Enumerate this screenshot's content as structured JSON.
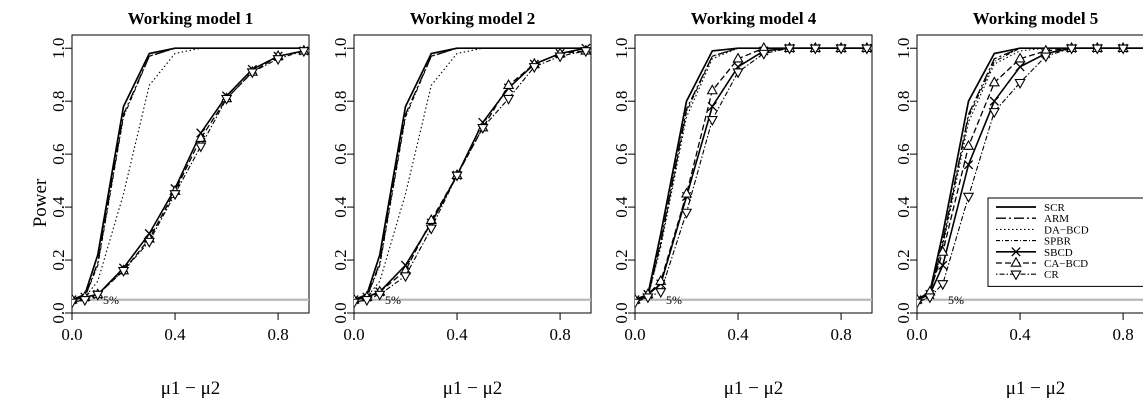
{
  "figure": {
    "ylabel": "Power",
    "xlabel": "μ1 − μ2",
    "reference_line_label": "5%"
  },
  "chart_data": [
    {
      "type": "line",
      "title": "Working model 1",
      "xlabel": "μ1 − μ2",
      "ylabel": "Power",
      "xlim": [
        0,
        0.92
      ],
      "ylim": [
        0,
        1.05
      ],
      "xticks": [
        "0.0",
        "0.4",
        "0.8"
      ],
      "yticks": [
        "0.0",
        "0.2",
        "0.4",
        "0.6",
        "0.8",
        "1.0"
      ],
      "reference_line": 0.05,
      "x": [
        0,
        0.05,
        0.1,
        0.2,
        0.3,
        0.4,
        0.5,
        0.6,
        0.7,
        0.8,
        0.9
      ],
      "series": [
        {
          "name": "SCR",
          "values": [
            0.05,
            0.07,
            0.22,
            0.78,
            0.98,
            1.0,
            1.0,
            1.0,
            1.0,
            1.0,
            1.0
          ]
        },
        {
          "name": "ARM",
          "values": [
            0.05,
            0.06,
            0.19,
            0.75,
            0.97,
            1.0,
            1.0,
            1.0,
            1.0,
            1.0,
            1.0
          ]
        },
        {
          "name": "DA−BCD",
          "values": [
            0.05,
            0.06,
            0.12,
            0.45,
            0.86,
            0.98,
            1.0,
            1.0,
            1.0,
            1.0,
            1.0
          ]
        },
        {
          "name": "SPBR",
          "values": [
            0.05,
            0.06,
            0.18,
            0.74,
            0.97,
            1.0,
            1.0,
            1.0,
            1.0,
            1.0,
            1.0
          ]
        },
        {
          "name": "SBCD",
          "values": [
            0.05,
            0.06,
            0.07,
            0.17,
            0.3,
            0.47,
            0.68,
            0.82,
            0.92,
            0.97,
            0.99
          ]
        },
        {
          "name": "CA−BCD",
          "values": [
            0.05,
            0.06,
            0.07,
            0.16,
            0.28,
            0.46,
            0.66,
            0.81,
            0.91,
            0.97,
            0.99
          ]
        },
        {
          "name": "CR",
          "values": [
            0.04,
            0.05,
            0.07,
            0.16,
            0.27,
            0.45,
            0.63,
            0.81,
            0.91,
            0.96,
            0.99
          ]
        }
      ]
    },
    {
      "type": "line",
      "title": "Working model 2",
      "xlabel": "μ1 − μ2",
      "ylabel": "Power",
      "xlim": [
        0,
        0.92
      ],
      "ylim": [
        0,
        1.05
      ],
      "xticks": [
        "0.0",
        "0.4",
        "0.8"
      ],
      "yticks": [
        "0.0",
        "0.2",
        "0.4",
        "0.6",
        "0.8",
        "1.0"
      ],
      "reference_line": 0.05,
      "x": [
        0,
        0.05,
        0.1,
        0.2,
        0.3,
        0.4,
        0.5,
        0.6,
        0.7,
        0.8,
        0.9
      ],
      "series": [
        {
          "name": "SCR",
          "values": [
            0.05,
            0.07,
            0.22,
            0.78,
            0.98,
            1.0,
            1.0,
            1.0,
            1.0,
            1.0,
            1.0
          ]
        },
        {
          "name": "ARM",
          "values": [
            0.05,
            0.06,
            0.19,
            0.75,
            0.97,
            1.0,
            1.0,
            1.0,
            1.0,
            1.0,
            1.0
          ]
        },
        {
          "name": "DA−BCD",
          "values": [
            0.05,
            0.06,
            0.12,
            0.45,
            0.86,
            0.98,
            1.0,
            1.0,
            1.0,
            1.0,
            1.0
          ]
        },
        {
          "name": "SPBR",
          "values": [
            0.05,
            0.06,
            0.18,
            0.74,
            0.97,
            1.0,
            1.0,
            1.0,
            1.0,
            1.0,
            1.0
          ]
        },
        {
          "name": "SBCD",
          "values": [
            0.05,
            0.06,
            0.08,
            0.18,
            0.34,
            0.52,
            0.72,
            0.85,
            0.94,
            0.98,
            1.0
          ]
        },
        {
          "name": "CA−BCD",
          "values": [
            0.05,
            0.06,
            0.08,
            0.16,
            0.35,
            0.52,
            0.7,
            0.86,
            0.94,
            0.98,
            0.99
          ]
        },
        {
          "name": "CR",
          "values": [
            0.04,
            0.05,
            0.07,
            0.14,
            0.32,
            0.52,
            0.7,
            0.81,
            0.93,
            0.97,
            0.99
          ]
        }
      ]
    },
    {
      "type": "line",
      "title": "Working model 4",
      "xlabel": "μ1 − μ2",
      "ylabel": "Power",
      "xlim": [
        0,
        0.92
      ],
      "ylim": [
        0,
        1.05
      ],
      "xticks": [
        "0.0",
        "0.4",
        "0.8"
      ],
      "yticks": [
        "0.0",
        "0.2",
        "0.4",
        "0.6",
        "0.8",
        "1.0"
      ],
      "reference_line": 0.05,
      "x": [
        0,
        0.05,
        0.1,
        0.2,
        0.3,
        0.4,
        0.5,
        0.6,
        0.7,
        0.8,
        0.9
      ],
      "series": [
        {
          "name": "SCR",
          "values": [
            0.05,
            0.07,
            0.3,
            0.8,
            0.99,
            1.0,
            1.0,
            1.0,
            1.0,
            1.0,
            1.0
          ]
        },
        {
          "name": "ARM",
          "values": [
            0.05,
            0.06,
            0.27,
            0.77,
            0.97,
            1.0,
            1.0,
            1.0,
            1.0,
            1.0,
            1.0
          ]
        },
        {
          "name": "DA−BCD",
          "values": [
            0.05,
            0.06,
            0.25,
            0.74,
            0.96,
            1.0,
            1.0,
            1.0,
            1.0,
            1.0,
            1.0
          ]
        },
        {
          "name": "SPBR",
          "values": [
            0.05,
            0.06,
            0.26,
            0.76,
            0.97,
            1.0,
            1.0,
            1.0,
            1.0,
            1.0,
            1.0
          ]
        },
        {
          "name": "SBCD",
          "values": [
            0.05,
            0.07,
            0.11,
            0.44,
            0.78,
            0.93,
            0.99,
            1.0,
            1.0,
            1.0,
            1.0
          ]
        },
        {
          "name": "CA−BCD",
          "values": [
            0.05,
            0.07,
            0.12,
            0.45,
            0.84,
            0.96,
            1.0,
            1.0,
            1.0,
            1.0,
            1.0
          ]
        },
        {
          "name": "CR",
          "values": [
            0.04,
            0.06,
            0.08,
            0.38,
            0.73,
            0.91,
            0.98,
            1.0,
            1.0,
            1.0,
            1.0
          ]
        }
      ]
    },
    {
      "type": "line",
      "title": "Working model 5",
      "xlabel": "μ1 − μ2",
      "ylabel": "Power",
      "xlim": [
        0,
        0.92
      ],
      "ylim": [
        0,
        1.05
      ],
      "xticks": [
        "0.0",
        "0.4",
        "0.8"
      ],
      "yticks": [
        "0.0",
        "0.2",
        "0.4",
        "0.6",
        "0.8",
        "1.0"
      ],
      "reference_line": 0.05,
      "legend": "inside right",
      "x": [
        0,
        0.05,
        0.1,
        0.2,
        0.3,
        0.4,
        0.5,
        0.6,
        0.7,
        0.8,
        0.9
      ],
      "series": [
        {
          "name": "SCR",
          "values": [
            0.05,
            0.08,
            0.3,
            0.8,
            0.98,
            1.0,
            1.0,
            1.0,
            1.0,
            1.0,
            1.0
          ]
        },
        {
          "name": "ARM",
          "values": [
            0.05,
            0.07,
            0.27,
            0.75,
            0.96,
            1.0,
            1.0,
            1.0,
            1.0,
            1.0,
            1.0
          ]
        },
        {
          "name": "DA−BCD",
          "values": [
            0.05,
            0.07,
            0.25,
            0.72,
            0.94,
            0.99,
            1.0,
            1.0,
            1.0,
            1.0,
            1.0
          ]
        },
        {
          "name": "SPBR",
          "values": [
            0.05,
            0.07,
            0.26,
            0.74,
            0.95,
            1.0,
            1.0,
            1.0,
            1.0,
            1.0,
            1.0
          ]
        },
        {
          "name": "SBCD",
          "values": [
            0.05,
            0.07,
            0.18,
            0.56,
            0.8,
            0.93,
            0.98,
            1.0,
            1.0,
            1.0,
            1.0
          ]
        },
        {
          "name": "CA−BCD",
          "values": [
            0.05,
            0.08,
            0.23,
            0.63,
            0.87,
            0.96,
            0.99,
            1.0,
            1.0,
            1.0,
            1.0
          ]
        },
        {
          "name": "CR",
          "values": [
            0.04,
            0.06,
            0.11,
            0.44,
            0.76,
            0.87,
            0.97,
            1.0,
            1.0,
            1.0,
            1.0
          ]
        }
      ]
    }
  ],
  "legend": {
    "entries": [
      "SCR",
      "ARM",
      "DA−BCD",
      "SPBR",
      "SBCD",
      "CA−BCD",
      "CR"
    ]
  },
  "series_styles": {
    "SCR": {
      "dash": "none",
      "width": 1.7,
      "marker": "none"
    },
    "ARM": {
      "dash": "10 3 2 3",
      "width": 1.3,
      "marker": "none"
    },
    "DA−BCD": {
      "dash": "1.5 2.5",
      "width": 1.1,
      "marker": "none"
    },
    "SPBR": {
      "dash": "4 2 1 2",
      "width": 1.1,
      "marker": "none"
    },
    "SBCD": {
      "dash": "none",
      "width": 1.6,
      "marker": "cross"
    },
    "CA−BCD": {
      "dash": "6 3",
      "width": 1.3,
      "marker": "triangle-up"
    },
    "CR": {
      "dash": "1.5 2 5 2",
      "width": 1.1,
      "marker": "triangle-down"
    }
  },
  "colors": {
    "line": "#000000",
    "reference_line": "#b8b8b8",
    "background": "#ffffff"
  }
}
